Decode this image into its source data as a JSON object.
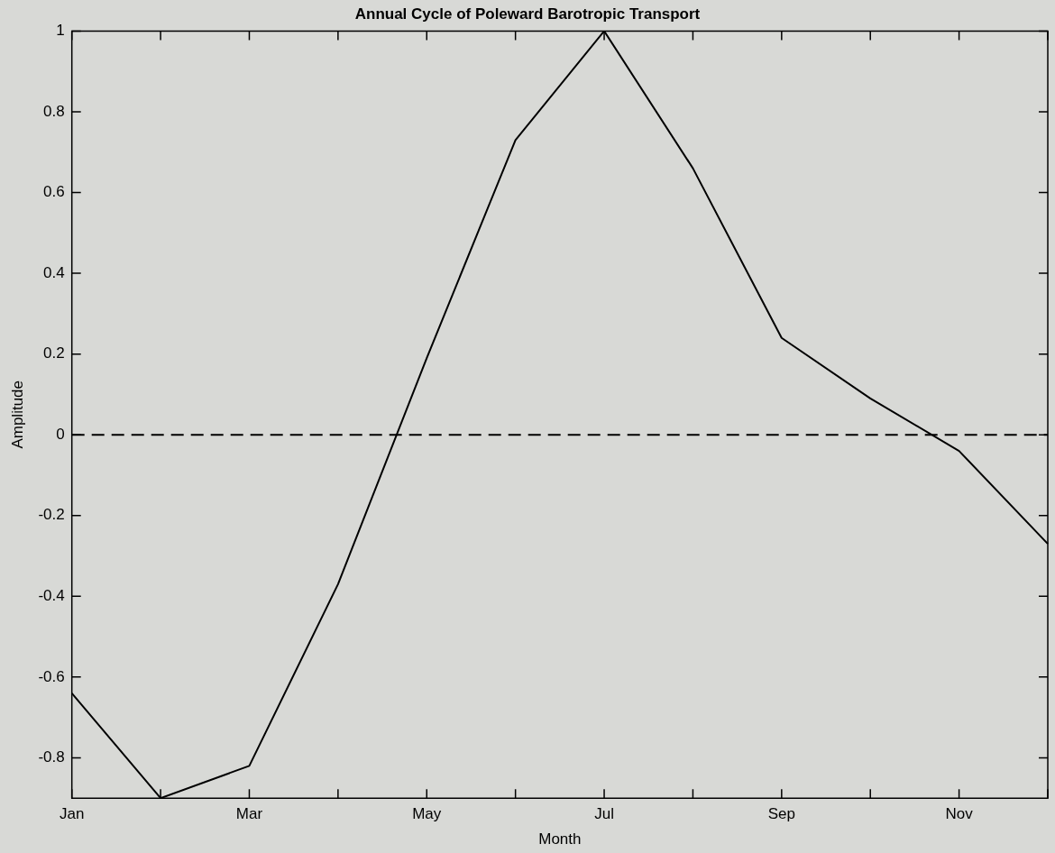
{
  "chart_data": {
    "type": "line",
    "title": "Annual Cycle of Poleward Barotropic Transport",
    "xlabel": "Month",
    "ylabel": "Amplitude",
    "categories": [
      "Jan",
      null,
      "Mar",
      null,
      "May",
      null,
      "Jul",
      null,
      "Sep",
      null,
      "Nov",
      null
    ],
    "series": [
      {
        "color": "#000000",
        "values": [
          -0.64,
          -0.9,
          -0.82,
          -0.37,
          0.19,
          0.73,
          1.0,
          0.66,
          0.24,
          0.09,
          -0.04,
          -0.27
        ]
      }
    ],
    "ylim": [
      -0.9,
      1
    ],
    "yticks": [
      -0.8,
      -0.6,
      -0.4,
      -0.2,
      0,
      0.2,
      0.4,
      0.6,
      0.8,
      1
    ],
    "ref_lines": [
      {
        "axis": "y",
        "value": 0,
        "color": "#000000",
        "line_style": "dashed"
      }
    ],
    "legend": false,
    "marker": "none",
    "line_style": "solid"
  }
}
